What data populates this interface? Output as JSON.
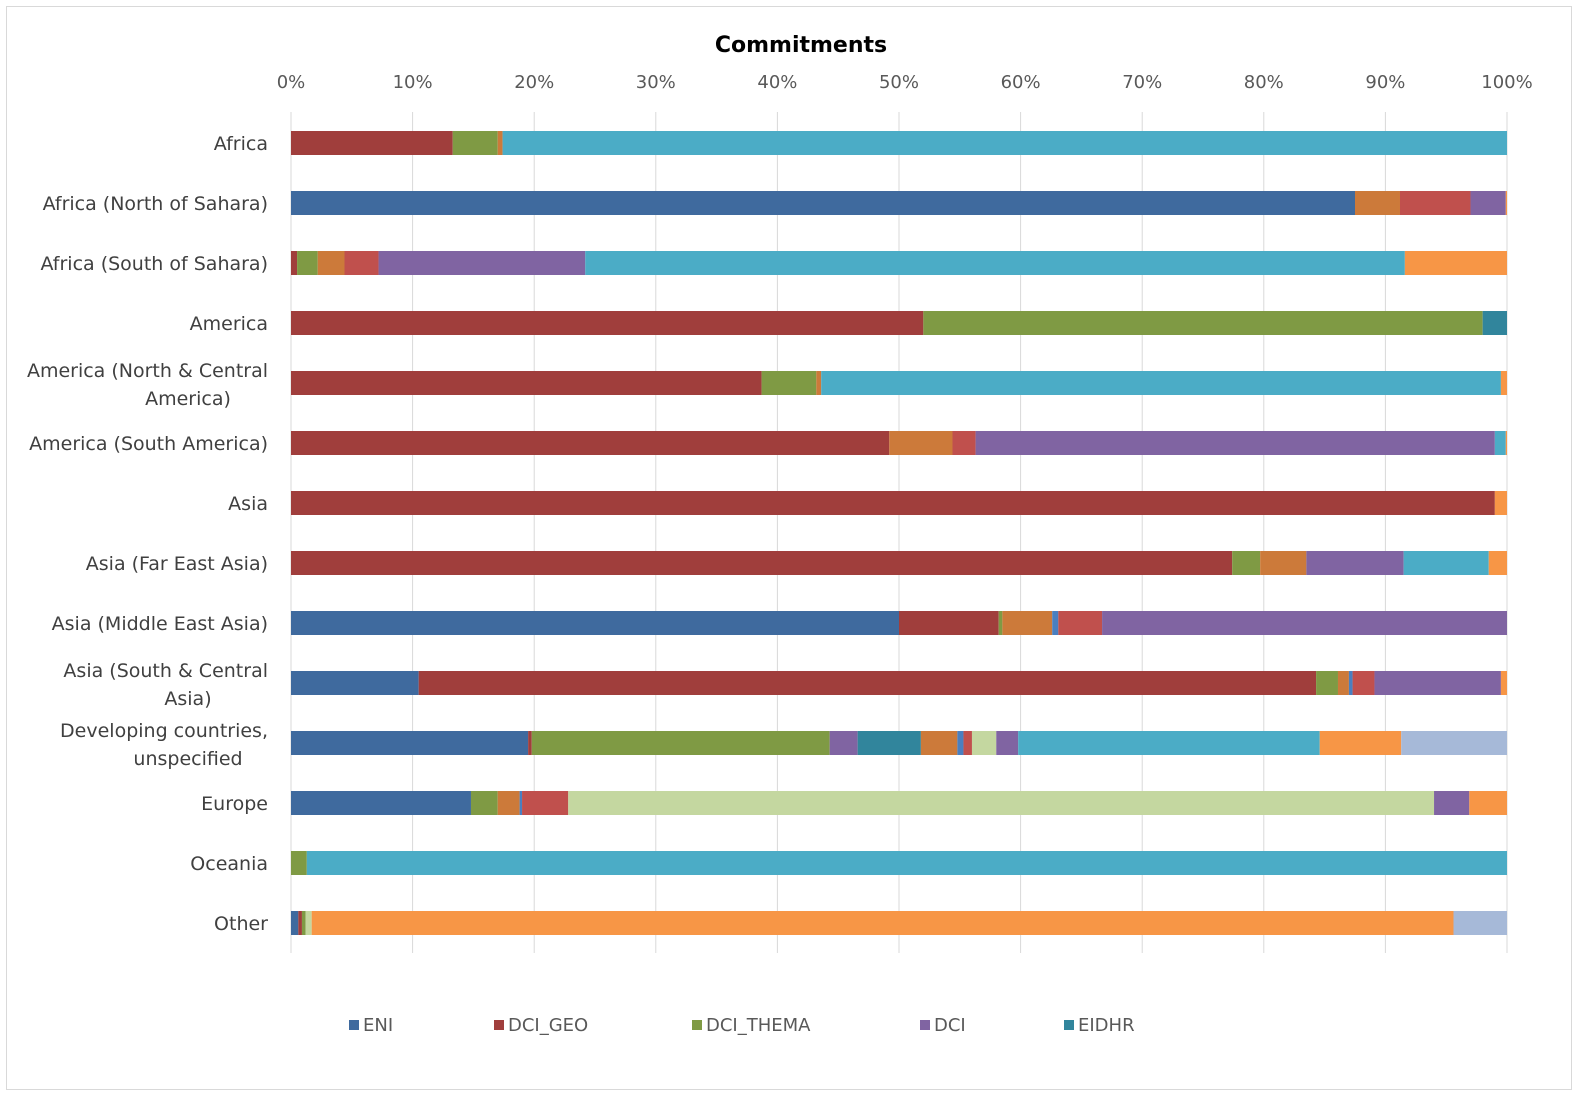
{
  "chart_data": {
    "type": "bar",
    "orientation": "horizontal",
    "stacked": "percent",
    "title": "Commitments",
    "xlim": [
      0,
      100
    ],
    "x_ticks": [
      "0%",
      "10%",
      "20%",
      "30%",
      "40%",
      "50%",
      "60%",
      "70%",
      "80%",
      "90%",
      "100%"
    ],
    "grid": true,
    "legend_position": "bottom",
    "categories": [
      [
        "Africa"
      ],
      [
        "Africa (North of Sahara)"
      ],
      [
        "Africa (South of Sahara)"
      ],
      [
        "America"
      ],
      [
        "America (North & Central",
        "America)"
      ],
      [
        "America (South America)"
      ],
      [
        "Asia"
      ],
      [
        "Asia (Far East Asia)"
      ],
      [
        "Asia (Middle East Asia)"
      ],
      [
        "Asia (South & Central",
        "Asia)"
      ],
      [
        "Developing countries,",
        "unspecified"
      ],
      [
        "Europe"
      ],
      [
        "Oceania"
      ],
      [
        "Other"
      ]
    ],
    "series": [
      {
        "name": "ENI",
        "color": "#3f6a9e",
        "values": [
          0,
          87.5,
          0,
          0,
          0,
          0,
          0,
          0,
          50,
          10.5,
          19.5,
          14.8,
          0,
          0.6
        ]
      },
      {
        "name": "DCI_GEO",
        "color": "#a03e3c",
        "values": [
          13.3,
          0,
          0.5,
          52,
          38.7,
          49.2,
          99,
          77.4,
          8.2,
          73.8,
          0.3,
          0,
          0,
          0.3
        ]
      },
      {
        "name": "DCI_THEMA",
        "color": "#7f9a44",
        "values": [
          3.7,
          0,
          1.7,
          46,
          4.5,
          0,
          0,
          2.3,
          0.3,
          1.8,
          24.5,
          2.2,
          1.3,
          0.3
        ]
      },
      {
        "name": "",
        "color": "#cc7a3a",
        "values": [
          0.4,
          3.7,
          2.2,
          0,
          0.4,
          5.2,
          0,
          3.8,
          4.1,
          0.9,
          0,
          1.8,
          0,
          0
        ]
      },
      {
        "name": "",
        "color": "#8a8a8a",
        "values": [
          0,
          0,
          0,
          0,
          0,
          0,
          0,
          0,
          0,
          0,
          0,
          0,
          0,
          0
        ]
      },
      {
        "name": "",
        "color": "#4a7fc0",
        "values": [
          0,
          0,
          0,
          0,
          0,
          0,
          0,
          0,
          0.5,
          0.3,
          0,
          0.2,
          0,
          0
        ]
      },
      {
        "name": "",
        "color": "#c0504d",
        "values": [
          0,
          5.8,
          2.8,
          0,
          0,
          1.9,
          0,
          0,
          3.6,
          1.8,
          0,
          3.8,
          0,
          0
        ]
      },
      {
        "name": "",
        "color": "#b7cf8e",
        "values": [
          0,
          0,
          0,
          0,
          0,
          0,
          0,
          0,
          0,
          0,
          0,
          0,
          0,
          0
        ]
      },
      {
        "name": "DCI",
        "color": "#8064a2",
        "values": [
          0,
          2.9,
          17,
          0,
          0,
          42.7,
          0,
          8,
          33.5,
          10.4,
          2.3,
          0,
          0,
          0
        ]
      },
      {
        "name": "EIDHR",
        "color": "#31859c",
        "values": [
          0,
          0,
          0,
          2.1,
          0,
          0,
          0,
          0,
          0,
          0,
          5.2,
          0,
          0,
          0
        ]
      },
      {
        "name": "",
        "color": "#cc7a3a",
        "values": [
          0,
          0,
          0,
          0,
          0,
          0,
          0,
          0,
          0,
          0,
          3,
          0,
          0,
          0
        ]
      },
      {
        "name": "",
        "color": "#4a7fc0",
        "values": [
          0,
          0,
          0,
          0,
          0,
          0,
          0,
          0,
          0,
          0,
          0.5,
          0,
          0,
          0
        ]
      },
      {
        "name": "",
        "color": "#c0504d",
        "values": [
          0,
          0,
          0,
          0,
          0,
          0,
          0,
          0,
          0,
          0,
          0.7,
          0,
          0,
          0
        ]
      },
      {
        "name": "",
        "color": "#c4d7a0",
        "values": [
          0,
          0,
          0,
          0,
          0,
          0,
          0,
          0,
          0,
          0,
          2,
          71.2,
          0,
          0.5
        ]
      },
      {
        "name": "",
        "color": "#8064a2",
        "values": [
          0,
          0,
          0,
          0,
          0,
          0,
          0,
          0,
          0,
          0,
          1.8,
          2.9,
          0,
          0
        ]
      },
      {
        "name": "",
        "color": "#4bacc6",
        "values": [
          82.6,
          0,
          67.4,
          0,
          55.9,
          0.9,
          0,
          7,
          0,
          0,
          24.8,
          0,
          98.7,
          0
        ]
      },
      {
        "name": "",
        "color": "#f79646",
        "values": [
          0,
          0.1,
          8.4,
          0,
          0.6,
          0.1,
          1,
          1.5,
          0,
          0.8,
          6.7,
          3.1,
          0,
          93.9
        ]
      },
      {
        "name": "",
        "color": "#a6b9d8",
        "values": [
          0,
          0,
          0,
          0,
          0,
          0,
          0,
          0,
          0,
          0,
          8.7,
          0,
          0,
          4.4
        ]
      }
    ]
  }
}
